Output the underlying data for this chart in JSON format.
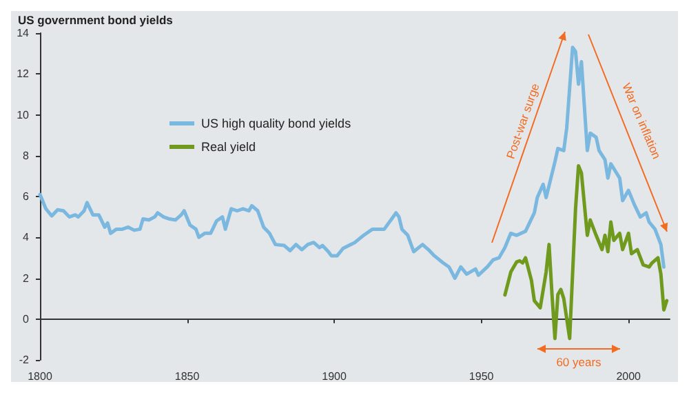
{
  "chart_data": {
    "type": "line",
    "title": "US government bond yields",
    "xlim": [
      1800,
      2014
    ],
    "xticks": [
      1800,
      1850,
      1900,
      1950,
      2000
    ],
    "ylim": [
      -2,
      14
    ],
    "yticks": [
      -2,
      0,
      2,
      4,
      6,
      8,
      10,
      12,
      14
    ],
    "legend": "top left",
    "marker": "none",
    "line_style": "solid",
    "series": [
      {
        "name": "US high quality bond yields",
        "color": "#7ab8e0",
        "x": [
          1800,
          1802,
          1804,
          1806,
          1808,
          1810,
          1812,
          1813,
          1815,
          1816,
          1818,
          1820,
          1822,
          1823,
          1824,
          1826,
          1828,
          1830,
          1832,
          1834,
          1835,
          1837,
          1839,
          1840,
          1842,
          1844,
          1846,
          1848,
          1849,
          1851,
          1853,
          1854,
          1856,
          1858,
          1860,
          1862,
          1863,
          1865,
          1867,
          1869,
          1871,
          1872,
          1874,
          1876,
          1878,
          1880,
          1883,
          1885,
          1887,
          1889,
          1891,
          1893,
          1895,
          1896,
          1898,
          1899,
          1901,
          1903,
          1907,
          1910,
          1913,
          1917,
          1921,
          1922,
          1923,
          1925,
          1927,
          1930,
          1932,
          1934,
          1937,
          1939,
          1941,
          1943,
          1945,
          1948,
          1949,
          1952,
          1954,
          1956,
          1958,
          1960,
          1962,
          1965,
          1968,
          1969,
          1971,
          1972,
          1975,
          1976,
          1978,
          1979,
          1981,
          1982,
          1983,
          1984,
          1986,
          1987,
          1989,
          1990,
          1992,
          1993,
          1994,
          1997,
          1998,
          2000,
          2002,
          2004,
          2006,
          2007,
          2009,
          2011,
          2012
        ],
        "values": [
          6.1,
          5.4,
          5.05,
          5.35,
          5.3,
          5.0,
          5.1,
          5.0,
          5.3,
          5.7,
          5.1,
          5.1,
          4.5,
          4.7,
          4.2,
          4.4,
          4.4,
          4.5,
          4.35,
          4.4,
          4.9,
          4.85,
          5.0,
          5.2,
          5.0,
          4.9,
          4.85,
          5.1,
          5.3,
          4.6,
          4.4,
          4.0,
          4.2,
          4.2,
          4.8,
          5.0,
          4.4,
          5.4,
          5.3,
          5.4,
          5.3,
          5.55,
          5.3,
          4.5,
          4.2,
          3.65,
          3.6,
          3.35,
          3.65,
          3.4,
          3.65,
          3.75,
          3.5,
          3.6,
          3.3,
          3.1,
          3.1,
          3.46,
          3.75,
          4.1,
          4.4,
          4.4,
          5.2,
          5.0,
          4.4,
          4.1,
          3.3,
          3.65,
          3.4,
          3.1,
          2.75,
          2.55,
          2.0,
          2.55,
          2.2,
          2.45,
          2.15,
          2.55,
          2.9,
          3.0,
          3.5,
          4.2,
          4.1,
          4.3,
          5.2,
          5.95,
          6.6,
          5.95,
          7.7,
          8.35,
          8.25,
          9.35,
          13.3,
          13.1,
          11.5,
          12.6,
          8.25,
          9.1,
          8.9,
          8.25,
          7.8,
          6.9,
          7.6,
          6.9,
          5.8,
          6.3,
          5.6,
          5.0,
          5.2,
          4.75,
          4.4,
          3.65,
          2.55
        ]
      },
      {
        "name": "Real yield",
        "color": "#6f9a1e",
        "x": [
          1958,
          1960,
          1962,
          1963,
          1964,
          1965,
          1967,
          1968,
          1970,
          1972,
          1973,
          1974,
          1975,
          1976,
          1977,
          1978,
          1980,
          1982,
          1983,
          1984,
          1986,
          1987,
          1989,
          1991,
          1992,
          1993,
          1994,
          1995,
          1997,
          1998,
          2000,
          2001,
          2003,
          2005,
          2007,
          2008,
          2010,
          2011,
          2012,
          2013
        ],
        "values": [
          1.18,
          2.3,
          2.8,
          2.85,
          2.75,
          3.0,
          1.9,
          0.9,
          0.55,
          2.3,
          3.65,
          1.2,
          -0.95,
          1.2,
          1.45,
          1.0,
          -0.95,
          5.4,
          7.5,
          7.15,
          4.1,
          4.85,
          4.1,
          3.4,
          4.1,
          3.3,
          4.75,
          3.85,
          4.2,
          3.4,
          4.2,
          3.2,
          3.4,
          2.65,
          2.55,
          2.75,
          3.0,
          2.2,
          0.45,
          0.9
        ]
      }
    ],
    "annotations": [
      "Post-war surge",
      "War on inflation",
      "60 years"
    ]
  }
}
